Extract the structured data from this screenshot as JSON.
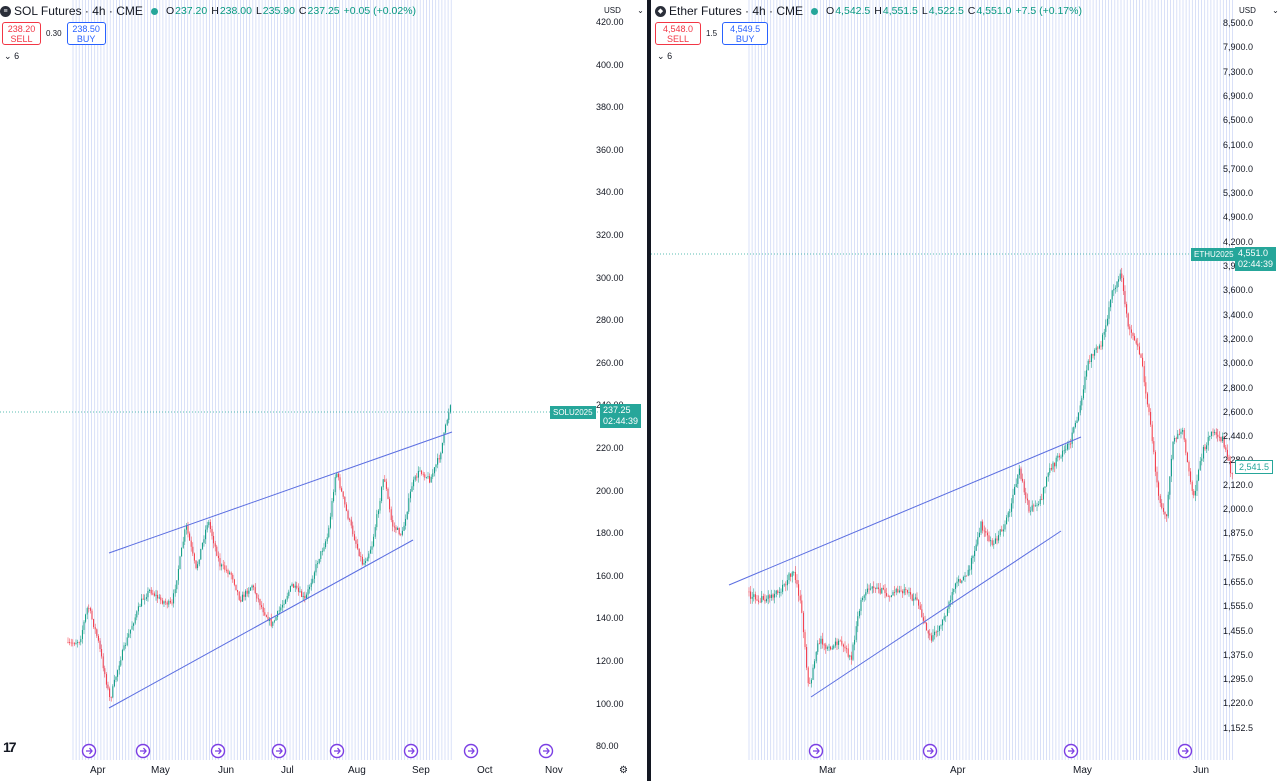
{
  "left": {
    "icon": "solana-icon",
    "title": "SOL Futures · 4h · CME",
    "open_label": "O",
    "open": "237.20",
    "high_label": "H",
    "high": "238.00",
    "low_label": "L",
    "low": "235.90",
    "close_label": "C",
    "close": "237.25",
    "change": "+0.05 (+0.02%)",
    "sell_price": "238.20",
    "sell_label": "SELL",
    "spread": "0.30",
    "buy_price": "238.50",
    "buy_label": "BUY",
    "indicators_count": "6",
    "currency": "USD",
    "y_ticks": [
      "420.00",
      "400.00",
      "380.00",
      "360.00",
      "340.00",
      "320.00",
      "300.00",
      "280.00",
      "260.00",
      "240.00",
      "220.00",
      "200.00",
      "180.00",
      "160.00",
      "140.00",
      "120.00",
      "100.00",
      "80.00"
    ],
    "x_ticks": [
      "Apr",
      "May",
      "Jun",
      "Jul",
      "Aug",
      "Sep",
      "Oct",
      "Nov"
    ],
    "symbol_tag": "SOLU2025",
    "last_price": "237.25",
    "countdown": "02:44:39",
    "colors": {
      "up": "#089981",
      "down": "#f23645",
      "trend": "#5b6ee1",
      "vline": "#c9d4f5",
      "event": "#7b3fe4"
    }
  },
  "right": {
    "icon": "ether-icon",
    "title": "Ether Futures · 4h · CME",
    "open_label": "O",
    "open": "4,542.5",
    "high_label": "H",
    "high": "4,551.5",
    "low_label": "L",
    "low": "4,522.5",
    "close_label": "C",
    "close": "4,551.0",
    "change": "+7.5 (+0.17%)",
    "sell_price": "4,548.0",
    "sell_label": "SELL",
    "spread": "1.5",
    "buy_price": "4,549.5",
    "buy_label": "BUY",
    "indicators_count": "6",
    "currency": "USD",
    "y_ticks": [
      "8,500.0",
      "7,900.0",
      "7,300.0",
      "6,900.0",
      "6,500.0",
      "6,100.0",
      "5,700.0",
      "5,300.0",
      "4,900.0",
      "4,200.0",
      "3,900.0",
      "3,600.0",
      "3,400.0",
      "3,200.0",
      "3,000.0",
      "2,800.0",
      "2,600.0",
      "2,440.0",
      "2,280.0",
      "2,120.0",
      "2,000.0",
      "1,875.0",
      "1,755.0",
      "1,655.0",
      "1,555.0",
      "1,455.0",
      "1,375.0",
      "1,295.0",
      "1,220.0",
      "1,152.5"
    ],
    "x_ticks": [
      "Mar",
      "Apr",
      "May",
      "Jun"
    ],
    "symbol_tag": "ETHU2025",
    "last_price": "4,551.0",
    "countdown": "02:44:39",
    "secondary_price": "2,541.5",
    "colors": {
      "up": "#089981",
      "down": "#f23645",
      "trend": "#5b6ee1",
      "vline": "#c9d4f5",
      "event": "#7b3fe4"
    }
  }
}
